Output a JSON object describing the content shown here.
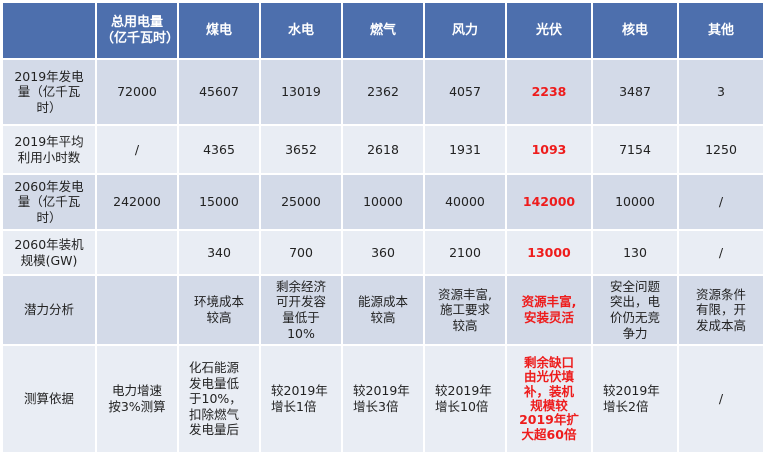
{
  "headers": [
    "",
    "总用电量\n（亿千瓦时）",
    "煤电",
    "水电",
    "燃气",
    "风力",
    "光伏",
    "核电",
    "其他"
  ],
  "rows": [
    {
      "label": "2019年发电\n量（亿千瓦\n时）",
      "cells": [
        "72000",
        "45607",
        "13019",
        "2362",
        "4057",
        "2238",
        "3487",
        "3"
      ]
    },
    {
      "label": "2019年平均\n利用小时数",
      "cells": [
        "/",
        "4365",
        "3652",
        "2618",
        "1931",
        "1093",
        "7154",
        "1250"
      ]
    },
    {
      "label": "2060年发电\n量（亿千瓦\n时）",
      "cells": [
        "242000",
        "15000",
        "25000",
        "10000",
        "40000",
        "142000",
        "10000",
        "/"
      ]
    },
    {
      "label": "2060年装机\n规模(GW)",
      "cells": [
        "",
        "340",
        "700",
        "360",
        "2100",
        "13000",
        "130",
        "/"
      ]
    },
    {
      "label": "潜力分析",
      "cells": [
        "",
        "环境成本\n较高",
        "剩余经济\n可开发容\n量低于\n10%",
        "能源成本\n较高",
        "资源丰富,\n施工要求\n较高",
        "资源丰富,\n安装灵活",
        "安全问题\n突出，电\n价仍无竞\n争力",
        "资源条件\n有限，开\n发成本高"
      ]
    },
    {
      "label": "测算依据",
      "cells": [
        "电力增速\n按3%测算",
        "化石能源\n发电量低\n于10%，\n扣除燃气\n发电量后",
        "较2019年\n增长1倍",
        "较2019年\n增长3倍",
        "较2019年\n增长10倍",
        "剩余缺口\n由光伏填\n补，装机\n规模较\n2019年扩\n大超60倍",
        "较2019年\n增长2倍",
        "/"
      ]
    }
  ],
  "colors": {
    "header_bg": "#4d6fad",
    "band_dark": "#d3dae8",
    "band_light": "#e9edf4",
    "highlight": "#ee1c1c"
  }
}
